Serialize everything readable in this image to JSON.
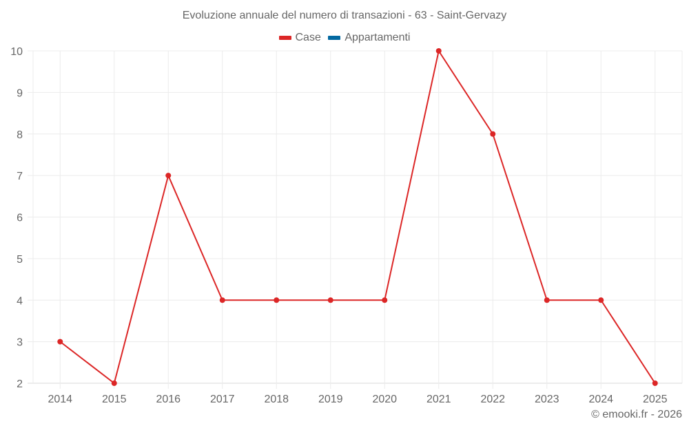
{
  "title": "Evoluzione annuale del numero di transazioni - 63 - Saint-Gervazy",
  "legend": [
    {
      "label": "Case",
      "color": "#dc2626"
    },
    {
      "label": "Appartamenti",
      "color": "#0369a1"
    }
  ],
  "credit": "© emooki.fr - 2026",
  "chart_data": {
    "type": "line",
    "title": "Evoluzione annuale del numero di transazioni - 63 - Saint-Gervazy",
    "xlabel": "",
    "ylabel": "",
    "categories": [
      "2014",
      "2015",
      "2016",
      "2017",
      "2018",
      "2019",
      "2020",
      "2021",
      "2022",
      "2023",
      "2024",
      "2025"
    ],
    "series": [
      {
        "name": "Case",
        "color": "#dc2626",
        "values": [
          3,
          2,
          7,
          4,
          4,
          4,
          4,
          10,
          8,
          4,
          4,
          2
        ]
      },
      {
        "name": "Appartamenti",
        "color": "#0369a1",
        "values": []
      }
    ],
    "yticks": [
      2,
      3,
      4,
      5,
      6,
      7,
      8,
      9,
      10
    ],
    "ylim": [
      2,
      10
    ],
    "grid": true,
    "legend_position": "top"
  }
}
